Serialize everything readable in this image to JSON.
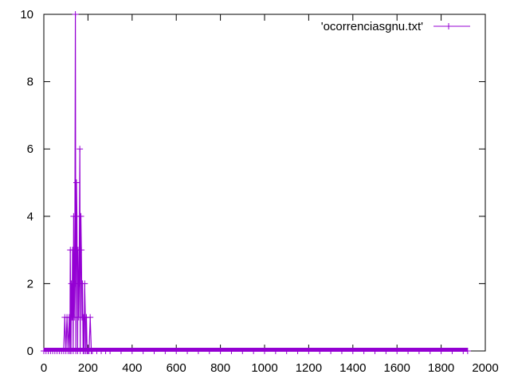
{
  "chart_data": {
    "type": "line",
    "title": "",
    "xlabel": "",
    "ylabel": "",
    "xlim": [
      0,
      2000
    ],
    "ylim": [
      0,
      10
    ],
    "x_ticks": [
      0,
      200,
      400,
      600,
      800,
      1000,
      1200,
      1400,
      1600,
      1800,
      2000
    ],
    "y_ticks": [
      0,
      2,
      4,
      6,
      8,
      10
    ],
    "x_tick_labels": [
      "0",
      "200",
      "400",
      "600",
      "800",
      "1000",
      "1200",
      "1400",
      "1600",
      "1800",
      "2000"
    ],
    "y_tick_labels": [
      "0",
      "2",
      "4",
      "6",
      "8",
      "10"
    ],
    "grid": false,
    "legend_position": "top-right",
    "series": [
      {
        "name": "'ocorrenciasgnu.txt'",
        "color": "#9400d3",
        "marker": "plus",
        "x": [
          0,
          10,
          20,
          30,
          40,
          50,
          60,
          70,
          80,
          90,
          95,
          100,
          105,
          110,
          115,
          118,
          120,
          123,
          125,
          128,
          130,
          133,
          135,
          138,
          140,
          143,
          145,
          148,
          150,
          153,
          155,
          158,
          160,
          163,
          165,
          168,
          170,
          173,
          175,
          178,
          180,
          183,
          185,
          188,
          190,
          193,
          196,
          200,
          205,
          210,
          215,
          220,
          240,
          260,
          280,
          300,
          350,
          400,
          450,
          500,
          550,
          600,
          650,
          700,
          750,
          800,
          850,
          900,
          950,
          1000,
          1050,
          1100,
          1150,
          1200,
          1250,
          1300,
          1350,
          1400,
          1450,
          1500,
          1550,
          1600,
          1650,
          1700,
          1750,
          1800,
          1850,
          1900,
          1920
        ],
        "y": [
          0,
          0,
          0,
          0,
          0,
          0,
          0,
          0,
          0,
          0,
          1,
          0,
          1,
          0,
          1,
          0,
          3,
          0,
          2,
          1,
          3,
          0,
          4,
          1,
          2,
          10,
          0,
          5,
          4,
          0,
          3,
          1,
          2,
          6,
          0,
          4,
          3,
          1,
          2,
          0,
          1,
          0,
          2,
          1,
          0,
          1,
          0,
          0,
          0,
          1,
          0,
          0,
          0,
          0,
          0,
          0,
          0,
          0,
          0,
          0,
          0,
          0,
          0,
          0,
          0,
          0,
          0,
          0,
          0,
          0,
          0,
          0,
          0,
          0,
          0,
          0,
          0,
          0,
          0,
          0,
          0,
          0,
          0,
          0,
          0,
          0,
          0,
          0,
          0
        ]
      }
    ]
  }
}
